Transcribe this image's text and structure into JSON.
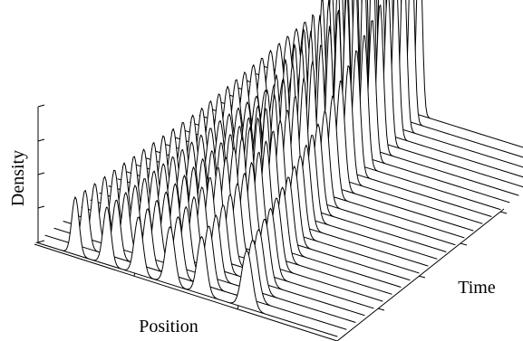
{
  "chart_data": {
    "type": "surface-waterfall",
    "title": "",
    "xlabel": "Position",
    "ylabel": "Time",
    "zlabel": "Density",
    "grid": false,
    "legend": "none",
    "ticks_labeled": false,
    "x_range": [
      0,
      1
    ],
    "t_range": [
      0,
      1
    ],
    "z_range": [
      0,
      1
    ],
    "time_slices": 26,
    "peaks": [
      {
        "name": "peak-a",
        "center_x": [
          0.13,
          0.16,
          0.14
        ],
        "width": [
          0.012,
          0.012,
          0.012
        ],
        "amplitude": [
          0.55,
          0.55,
          0.55
        ]
      },
      {
        "name": "peak-b",
        "center_x": [
          0.235,
          0.25,
          0.25
        ],
        "width": [
          0.013,
          0.013,
          0.013
        ],
        "amplitude": [
          0.55,
          0.58,
          0.45
        ]
      },
      {
        "name": "peak-c",
        "center_x": [
          0.34,
          0.345,
          0.35
        ],
        "width": [
          0.014,
          0.012,
          0.009
        ],
        "amplitude": [
          0.55,
          0.7,
          1.7
        ]
      },
      {
        "name": "peak-d",
        "center_x": [
          0.445,
          0.4,
          0.4
        ],
        "width": [
          0.015,
          0.011,
          0.008
        ],
        "amplitude": [
          0.55,
          0.85,
          1.9
        ]
      },
      {
        "name": "peak-e",
        "center_x": [
          0.55,
          0.47,
          0.45
        ],
        "width": [
          0.015,
          0.012,
          0.008
        ],
        "amplitude": [
          0.55,
          0.9,
          2.1
        ]
      },
      {
        "name": "peak-f",
        "center_x": [
          0.7,
          0.57,
          0.52
        ],
        "width": [
          0.017,
          0.014,
          0.009
        ],
        "amplitude": [
          0.55,
          0.85,
          1.8
        ]
      }
    ]
  }
}
